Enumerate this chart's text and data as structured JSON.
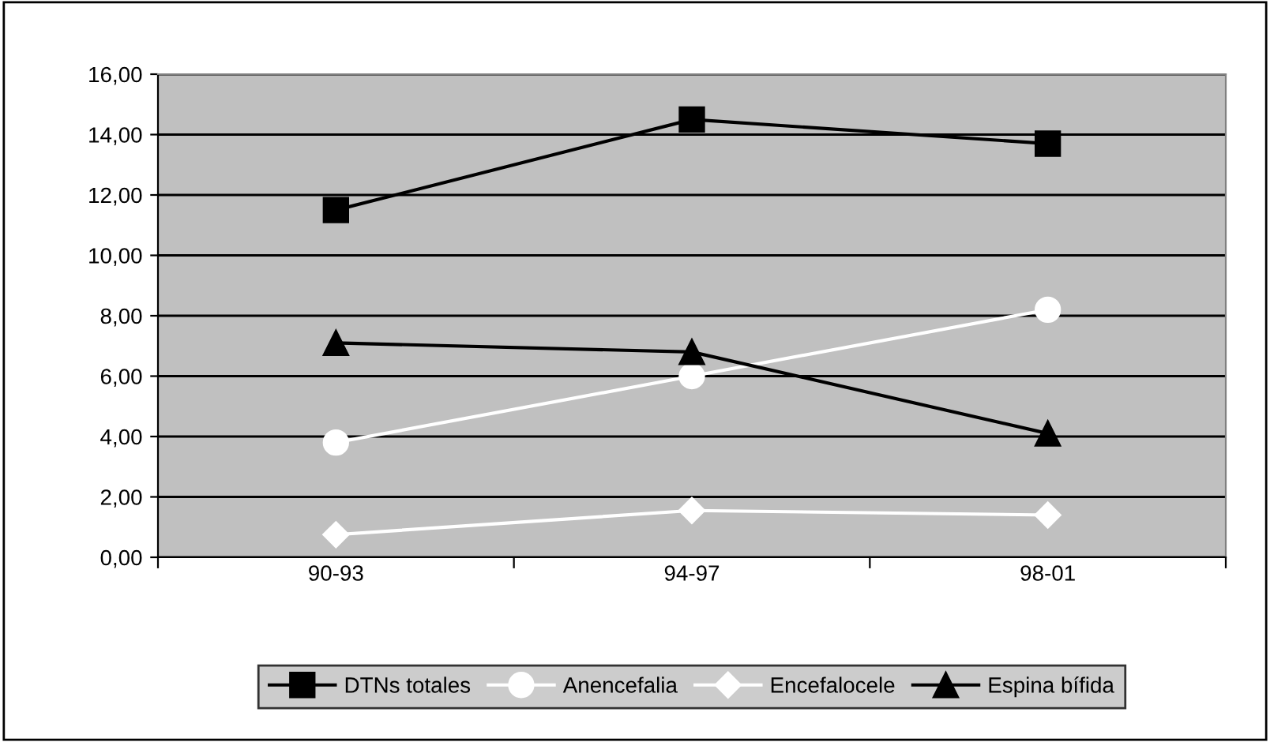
{
  "chart_data": {
    "type": "line",
    "categories": [
      "90-93",
      "94-97",
      "98-01"
    ],
    "series": [
      {
        "name": "DTNs totales",
        "color": "#000000",
        "marker": "square",
        "values": [
          11.5,
          14.5,
          13.7
        ]
      },
      {
        "name": "Anencefalia",
        "color": "#ffffff",
        "marker": "circle",
        "values": [
          3.8,
          6.0,
          8.2
        ]
      },
      {
        "name": "Encefalocele",
        "color": "#ffffff",
        "marker": "diamond",
        "values": [
          0.75,
          1.55,
          1.4
        ]
      },
      {
        "name": "Espina bífida",
        "color": "#000000",
        "marker": "triangle",
        "values": [
          7.1,
          6.8,
          4.1
        ]
      }
    ],
    "ylim": [
      0,
      16
    ],
    "yticks": [
      {
        "value": 0,
        "label": "0,00"
      },
      {
        "value": 2,
        "label": "2,00"
      },
      {
        "value": 4,
        "label": "4,00"
      },
      {
        "value": 6,
        "label": "6,00"
      },
      {
        "value": 8,
        "label": "8,00"
      },
      {
        "value": 10,
        "label": "10,00"
      },
      {
        "value": 12,
        "label": "12,00"
      },
      {
        "value": 14,
        "label": "14,00"
      },
      {
        "value": 16,
        "label": "16,00"
      }
    ],
    "grid": "y",
    "legend": "bottom",
    "line_style": "solid"
  }
}
